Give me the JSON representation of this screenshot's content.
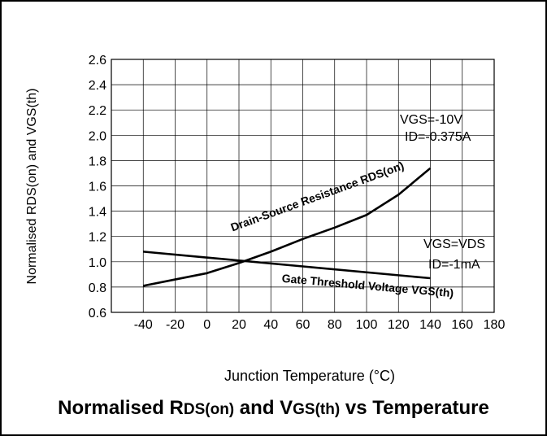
{
  "chart_data": {
    "type": "line",
    "title": {
      "parts": [
        {
          "text": "Normalised R",
          "sub": false
        },
        {
          "text": "DS(on)",
          "sub": true
        },
        {
          "text": " and V",
          "sub": false
        },
        {
          "text": "GS(th)",
          "sub": true
        },
        {
          "text": " vs Temperature",
          "sub": false
        }
      ]
    },
    "xlabel": "Junction Temperature (°C)",
    "ylabel": "Normalised RDS(on) and VGS(th)",
    "xlim": [
      -60,
      180
    ],
    "ylim": [
      0.6,
      2.6
    ],
    "x_ticks": [
      -40,
      -20,
      0,
      20,
      40,
      60,
      80,
      100,
      120,
      140,
      160,
      180
    ],
    "x_tick_labels": [
      "-40",
      "-20",
      "0",
      "20",
      "40",
      "60",
      "80",
      "100",
      "120",
      "140",
      "160",
      "180"
    ],
    "y_ticks": [
      0.6,
      0.8,
      1.0,
      1.2,
      1.4,
      1.6,
      1.8,
      2.0,
      2.2,
      2.4,
      2.6
    ],
    "y_tick_labels": [
      "0.6",
      "0.8",
      "1.0",
      "1.2",
      "1.4",
      "1.6",
      "1.8",
      "2.0",
      "2.2",
      "2.4",
      "2.6"
    ],
    "grid": true,
    "series": [
      {
        "name": "Drain-Source Resistance RDS(on)",
        "x": [
          -40,
          -20,
          0,
          20,
          40,
          60,
          80,
          100,
          120,
          140
        ],
        "y": [
          0.81,
          0.86,
          0.91,
          0.99,
          1.08,
          1.18,
          1.27,
          1.37,
          1.53,
          1.74
        ]
      },
      {
        "name": "Gate Threshold Voltage VGS(th)",
        "x": [
          -40,
          140
        ],
        "y": [
          1.08,
          0.87
        ]
      }
    ],
    "annotations": [
      {
        "id": "rds-condition-1",
        "text": "VGS=-10V"
      },
      {
        "id": "rds-condition-2",
        "text": "ID=-0.375A"
      },
      {
        "id": "vgs-condition-1",
        "text": "VGS=VDS"
      },
      {
        "id": "vgs-condition-2",
        "text": "ID=-1mA"
      }
    ]
  }
}
